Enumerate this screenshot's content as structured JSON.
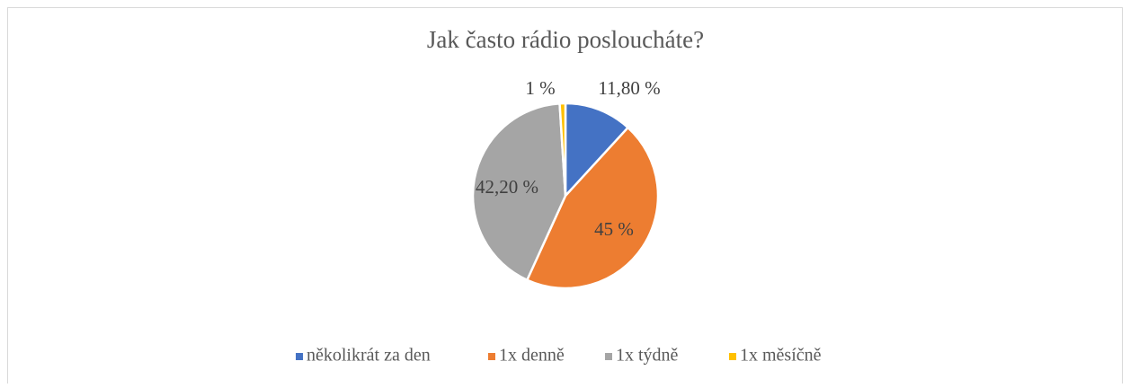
{
  "chart_data": {
    "type": "pie",
    "title": "Jak často rádio posloucháte?",
    "categories": [
      "několikrát za den",
      "1x denně",
      "1x týdně",
      "1x měsíčně"
    ],
    "values": [
      11.8,
      45,
      42.2,
      1
    ],
    "value_labels": [
      "11,80 %",
      "45 %",
      "42,20 %",
      "1 %"
    ],
    "colors": [
      "#4472c4",
      "#ed7d31",
      "#a5a5a5",
      "#ffc000"
    ],
    "legend": "bottom"
  }
}
